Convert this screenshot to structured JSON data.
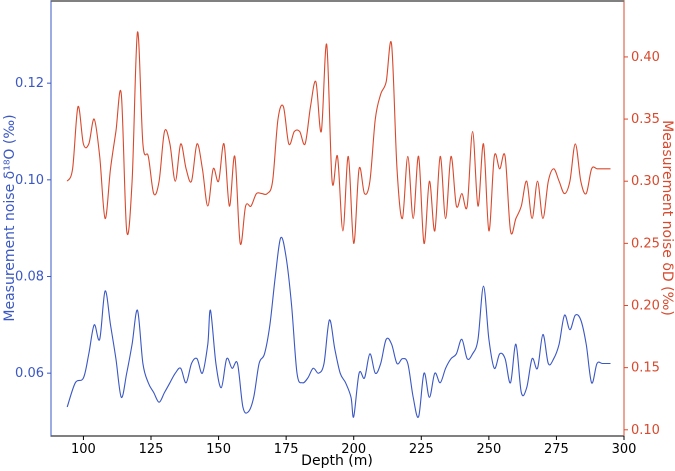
{
  "chart_data": {
    "type": "line",
    "xlabel": "Depth (m)",
    "ylabel_left": "Measurement noise δ¹⁸O (‰)",
    "ylabel_right": "Measurement noise δD (‰)",
    "xlim": [
      88,
      300
    ],
    "ylim_left": [
      0.047,
      0.137
    ],
    "ylim_right": [
      0.095,
      0.445
    ],
    "x_ticks": [
      100,
      125,
      150,
      175,
      200,
      225,
      250,
      275,
      300
    ],
    "left_ticks": [
      0.06,
      0.08,
      0.1,
      0.12
    ],
    "right_ticks": [
      0.1,
      0.15,
      0.2,
      0.25,
      0.3,
      0.35,
      0.4
    ],
    "grid": false,
    "colors": {
      "left": "#3a57c4",
      "right": "#d9492d",
      "axis": "#000000"
    },
    "series": [
      {
        "axis": "left",
        "x": [
          94,
          97,
          100,
          102,
          104,
          106,
          108,
          110,
          112,
          114,
          116,
          118,
          120,
          122,
          124,
          126,
          128,
          130,
          132,
          134,
          136,
          138,
          140,
          142,
          144,
          146,
          147,
          149,
          151,
          153,
          155,
          157,
          159,
          161,
          163,
          165,
          167,
          169,
          171,
          173,
          175,
          177,
          179,
          181,
          183,
          185,
          187,
          189,
          191,
          193,
          195,
          197,
          199,
          200,
          202,
          204,
          206,
          208,
          210,
          212,
          214,
          216,
          218,
          220,
          222,
          224,
          226,
          228,
          230,
          232,
          234,
          236,
          238,
          240,
          242,
          244,
          246,
          248,
          250,
          252,
          254,
          256,
          258,
          260,
          262,
          264,
          266,
          268,
          270,
          272,
          274,
          276,
          278,
          280,
          282,
          284,
          286,
          288,
          290,
          292,
          295
        ],
        "y": [
          0.053,
          0.058,
          0.059,
          0.064,
          0.07,
          0.067,
          0.077,
          0.07,
          0.063,
          0.055,
          0.06,
          0.066,
          0.073,
          0.062,
          0.058,
          0.056,
          0.054,
          0.056,
          0.058,
          0.06,
          0.061,
          0.058,
          0.062,
          0.063,
          0.06,
          0.066,
          0.073,
          0.062,
          0.057,
          0.063,
          0.061,
          0.062,
          0.053,
          0.052,
          0.055,
          0.062,
          0.064,
          0.07,
          0.08,
          0.088,
          0.084,
          0.074,
          0.06,
          0.058,
          0.059,
          0.061,
          0.06,
          0.062,
          0.071,
          0.065,
          0.06,
          0.058,
          0.055,
          0.051,
          0.06,
          0.059,
          0.064,
          0.06,
          0.062,
          0.067,
          0.066,
          0.062,
          0.063,
          0.062,
          0.055,
          0.051,
          0.06,
          0.055,
          0.06,
          0.058,
          0.061,
          0.063,
          0.064,
          0.067,
          0.063,
          0.064,
          0.067,
          0.078,
          0.067,
          0.061,
          0.064,
          0.063,
          0.058,
          0.066,
          0.056,
          0.057,
          0.063,
          0.061,
          0.068,
          0.062,
          0.063,
          0.066,
          0.072,
          0.069,
          0.072,
          0.071,
          0.066,
          0.058,
          0.062,
          0.062,
          0.062
        ]
      },
      {
        "axis": "right",
        "x": [
          94,
          96,
          98,
          100,
          102,
          104,
          106,
          108,
          110,
          112,
          114,
          116,
          118,
          120,
          122,
          124,
          126,
          128,
          130,
          132,
          134,
          136,
          138,
          140,
          142,
          144,
          146,
          148,
          150,
          152,
          154,
          156,
          158,
          160,
          162,
          164,
          166,
          168,
          170,
          172,
          174,
          176,
          178,
          180,
          182,
          184,
          186,
          188,
          190,
          192,
          194,
          196,
          198,
          200,
          202,
          204,
          206,
          208,
          210,
          212,
          214,
          216,
          218,
          220,
          222,
          224,
          226,
          228,
          230,
          232,
          234,
          236,
          238,
          240,
          242,
          244,
          246,
          248,
          250,
          252,
          254,
          256,
          258,
          260,
          262,
          264,
          266,
          268,
          270,
          272,
          274,
          276,
          278,
          280,
          282,
          284,
          286,
          288,
          290,
          292,
          295
        ],
        "y": [
          0.3,
          0.31,
          0.36,
          0.33,
          0.33,
          0.35,
          0.32,
          0.27,
          0.31,
          0.34,
          0.37,
          0.26,
          0.3,
          0.42,
          0.33,
          0.32,
          0.29,
          0.3,
          0.34,
          0.33,
          0.3,
          0.33,
          0.31,
          0.3,
          0.33,
          0.31,
          0.28,
          0.31,
          0.3,
          0.33,
          0.28,
          0.32,
          0.25,
          0.28,
          0.28,
          0.29,
          0.29,
          0.29,
          0.3,
          0.35,
          0.36,
          0.33,
          0.34,
          0.34,
          0.33,
          0.36,
          0.38,
          0.34,
          0.41,
          0.3,
          0.32,
          0.26,
          0.32,
          0.25,
          0.31,
          0.29,
          0.3,
          0.35,
          0.37,
          0.38,
          0.41,
          0.31,
          0.27,
          0.32,
          0.27,
          0.32,
          0.25,
          0.3,
          0.26,
          0.32,
          0.27,
          0.32,
          0.28,
          0.29,
          0.28,
          0.34,
          0.28,
          0.33,
          0.26,
          0.32,
          0.31,
          0.32,
          0.26,
          0.27,
          0.28,
          0.3,
          0.27,
          0.3,
          0.27,
          0.3,
          0.31,
          0.3,
          0.29,
          0.3,
          0.33,
          0.3,
          0.29,
          0.31,
          0.31,
          0.31,
          0.31
        ]
      }
    ]
  }
}
